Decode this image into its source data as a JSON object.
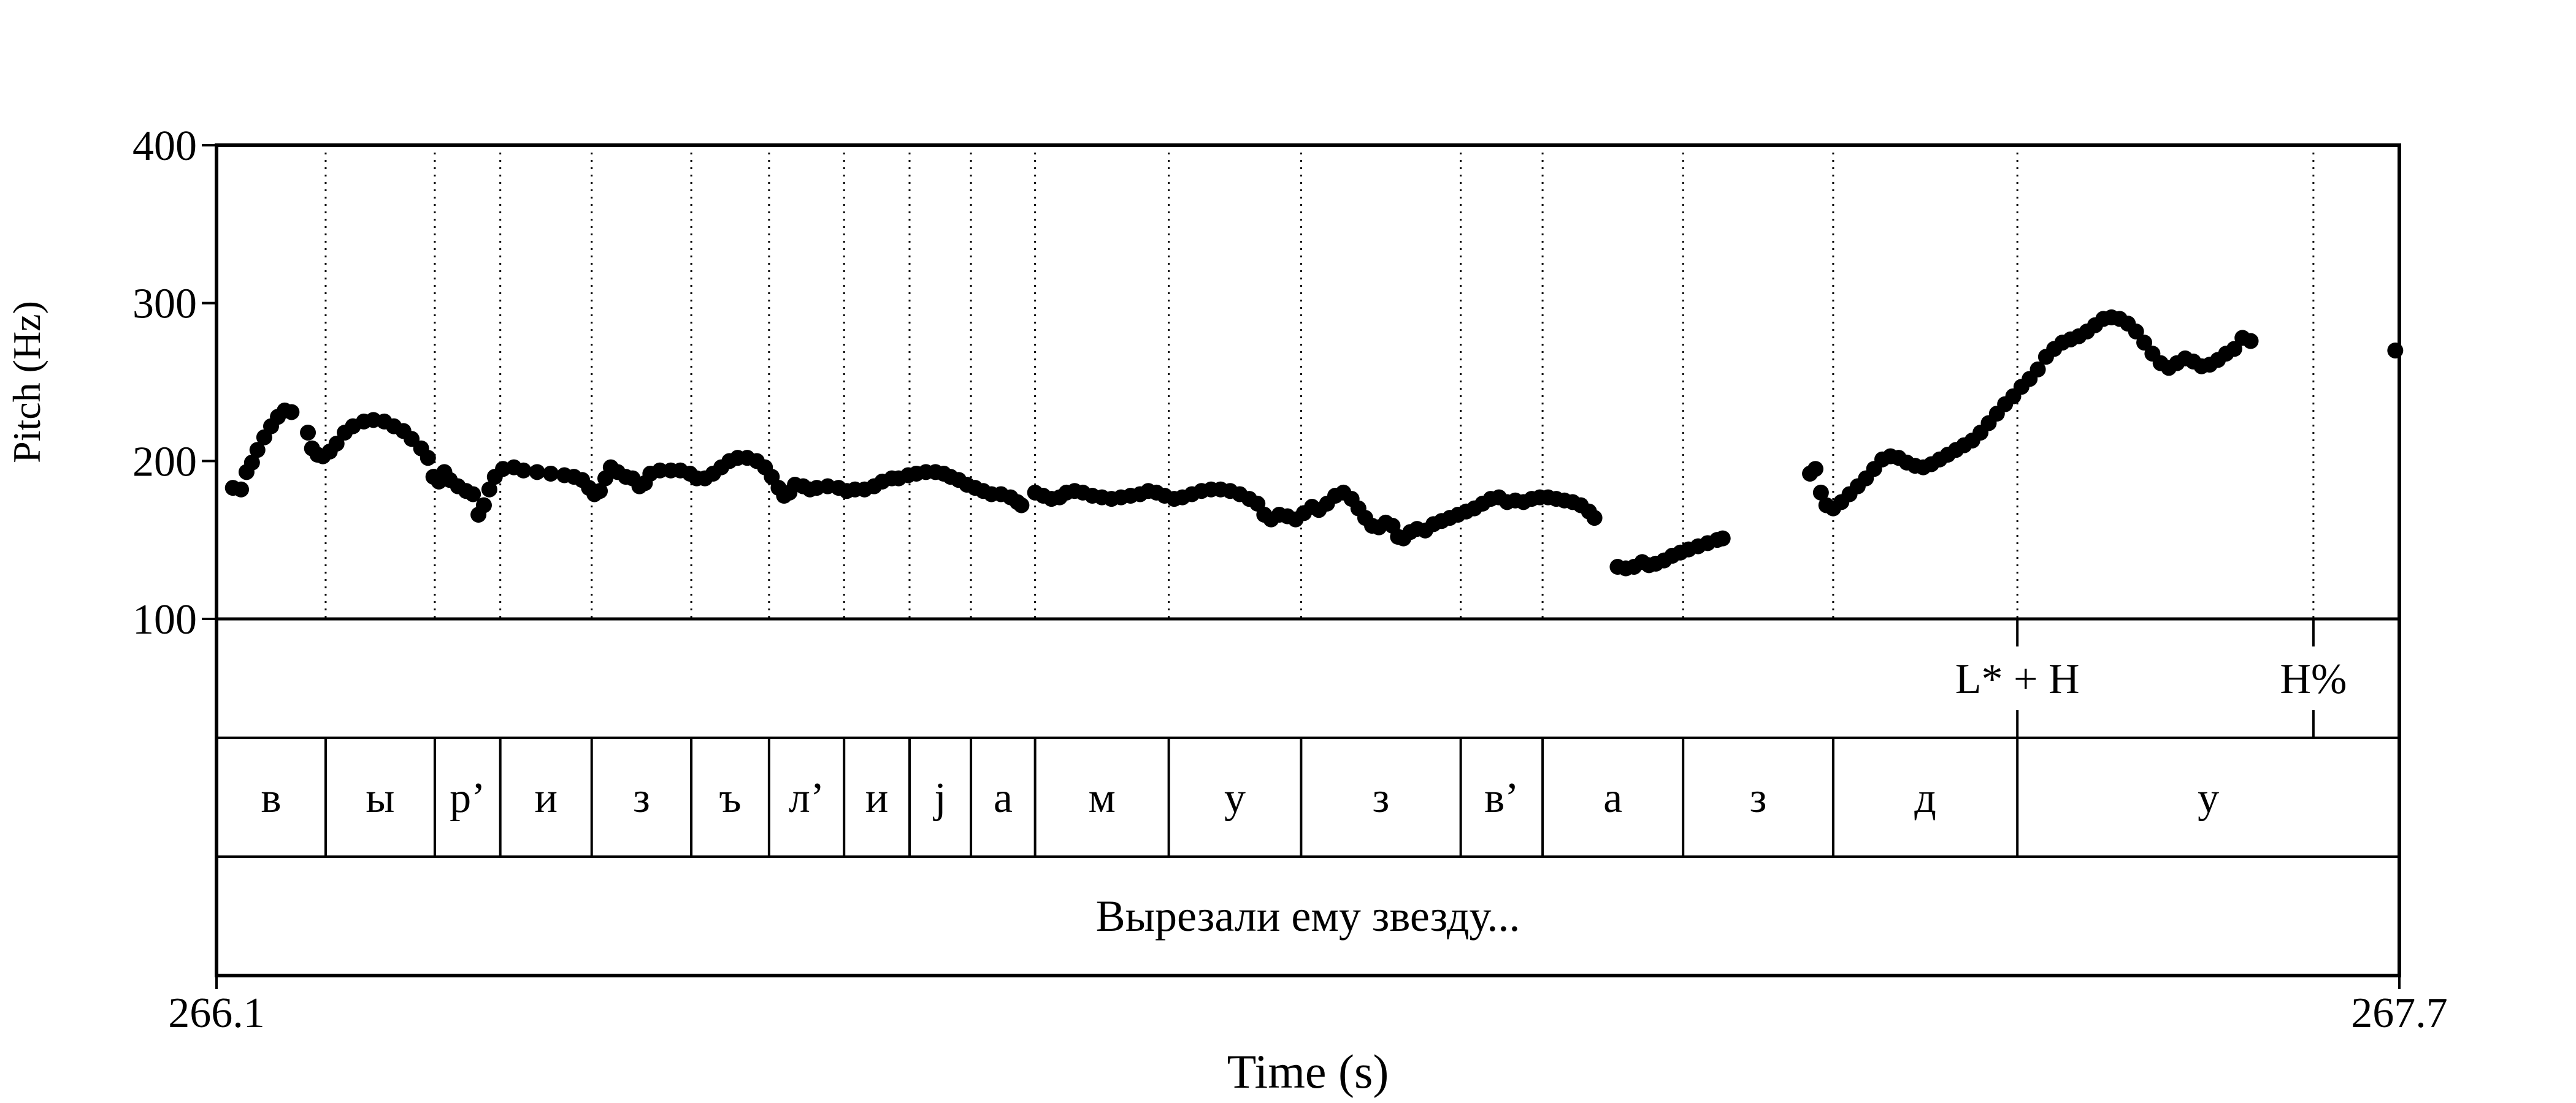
{
  "chart_data": {
    "type": "scatter",
    "subtype": "praat-pitch-track",
    "ylabel": "Pitch (Hz)",
    "xlabel": "Time (s)",
    "ylim": [
      100,
      400
    ],
    "xlim": [
      266.1,
      267.7
    ],
    "yticks": [
      "400",
      "300",
      "200",
      "100"
    ],
    "xticks": [
      "266.1",
      "267.7"
    ],
    "series": [
      {
        "points": [
          [
            266.112,
            183
          ],
          [
            266.118,
            182
          ],
          [
            266.122,
            193
          ],
          [
            266.126,
            199
          ],
          [
            266.13,
            207
          ],
          [
            266.135,
            215
          ],
          [
            266.14,
            222
          ],
          [
            266.145,
            228
          ],
          [
            266.15,
            232
          ],
          [
            266.155,
            231
          ],
          [
            266.167,
            218
          ],
          [
            266.17,
            208
          ],
          [
            266.174,
            204
          ],
          [
            266.178,
            203
          ],
          [
            266.183,
            206
          ],
          [
            266.188,
            211
          ],
          [
            266.194,
            218
          ],
          [
            266.2,
            222
          ],
          [
            266.208,
            225
          ],
          [
            266.215,
            226
          ],
          [
            266.223,
            225
          ],
          [
            266.23,
            222
          ],
          [
            266.237,
            219
          ],
          [
            266.243,
            214
          ],
          [
            266.25,
            208
          ],
          [
            266.255,
            202
          ],
          [
            266.259,
            190
          ],
          [
            266.263,
            187
          ],
          [
            266.267,
            193
          ],
          [
            266.271,
            188
          ],
          [
            266.277,
            184
          ],
          [
            266.283,
            181
          ],
          [
            266.288,
            179
          ],
          [
            266.292,
            166
          ],
          [
            266.296,
            172
          ],
          [
            266.3,
            182
          ],
          [
            266.304,
            190
          ],
          [
            266.31,
            195
          ],
          [
            266.318,
            196
          ],
          [
            266.325,
            194
          ],
          [
            266.335,
            193
          ],
          [
            266.345,
            192
          ],
          [
            266.355,
            191
          ],
          [
            266.362,
            190
          ],
          [
            266.368,
            188
          ],
          [
            266.373,
            183
          ],
          [
            266.377,
            179
          ],
          [
            266.381,
            181
          ],
          [
            266.385,
            189
          ],
          [
            266.389,
            196
          ],
          [
            266.394,
            193
          ],
          [
            266.4,
            190
          ],
          [
            266.405,
            189
          ],
          [
            266.41,
            184
          ],
          [
            266.414,
            186
          ],
          [
            266.418,
            192
          ],
          [
            266.425,
            194
          ],
          [
            266.433,
            194
          ],
          [
            266.44,
            194
          ],
          [
            266.447,
            192
          ],
          [
            266.452,
            189
          ],
          [
            266.458,
            189
          ],
          [
            266.464,
            192
          ],
          [
            266.47,
            196
          ],
          [
            266.476,
            200
          ],
          [
            266.482,
            202
          ],
          [
            266.489,
            202
          ],
          [
            266.496,
            200
          ],
          [
            266.502,
            196
          ],
          [
            266.507,
            190
          ],
          [
            266.512,
            183
          ],
          [
            266.516,
            178
          ],
          [
            266.52,
            180
          ],
          [
            266.524,
            185
          ],
          [
            266.53,
            184
          ],
          [
            266.535,
            182
          ],
          [
            266.54,
            183
          ],
          [
            266.548,
            184
          ],
          [
            266.556,
            183
          ],
          [
            266.562,
            181
          ],
          [
            266.568,
            182
          ],
          [
            266.575,
            182
          ],
          [
            266.582,
            184
          ],
          [
            266.588,
            187
          ],
          [
            266.595,
            189
          ],
          [
            266.6,
            189
          ],
          [
            266.607,
            191
          ],
          [
            266.613,
            192
          ],
          [
            266.62,
            193
          ],
          [
            266.627,
            193
          ],
          [
            266.633,
            192
          ],
          [
            266.638,
            190
          ],
          [
            266.644,
            188
          ],
          [
            266.65,
            185
          ],
          [
            266.656,
            183
          ],
          [
            266.662,
            181
          ],
          [
            266.668,
            179
          ],
          [
            266.675,
            179
          ],
          [
            266.682,
            177
          ],
          [
            266.687,
            174
          ],
          [
            266.69,
            172
          ],
          [
            266.7,
            180
          ],
          [
            266.706,
            178
          ],
          [
            266.712,
            176
          ],
          [
            266.718,
            177
          ],
          [
            266.723,
            180
          ],
          [
            266.729,
            181
          ],
          [
            266.735,
            180
          ],
          [
            266.742,
            178
          ],
          [
            266.749,
            177
          ],
          [
            266.756,
            176
          ],
          [
            266.763,
            177
          ],
          [
            266.77,
            178
          ],
          [
            266.777,
            179
          ],
          [
            266.783,
            181
          ],
          [
            266.789,
            180
          ],
          [
            266.795,
            178
          ],
          [
            266.802,
            176
          ],
          [
            266.808,
            177
          ],
          [
            266.815,
            179
          ],
          [
            266.822,
            181
          ],
          [
            266.829,
            182
          ],
          [
            266.836,
            182
          ],
          [
            266.843,
            181
          ],
          [
            266.85,
            179
          ],
          [
            266.857,
            176
          ],
          [
            266.863,
            173
          ],
          [
            266.868,
            166
          ],
          [
            266.873,
            163
          ],
          [
            266.879,
            166
          ],
          [
            266.885,
            165
          ],
          [
            266.891,
            163
          ],
          [
            266.897,
            167
          ],
          [
            266.903,
            171
          ],
          [
            266.908,
            169
          ],
          [
            266.914,
            173
          ],
          [
            266.92,
            178
          ],
          [
            266.926,
            180
          ],
          [
            266.932,
            176
          ],
          [
            266.937,
            170
          ],
          [
            266.942,
            164
          ],
          [
            266.947,
            159
          ],
          [
            266.952,
            158
          ],
          [
            266.957,
            161
          ],
          [
            266.962,
            159
          ],
          [
            266.966,
            152
          ],
          [
            266.97,
            151
          ],
          [
            266.975,
            155
          ],
          [
            266.98,
            157
          ],
          [
            266.986,
            156
          ],
          [
            266.992,
            160
          ],
          [
            266.998,
            162
          ],
          [
            267.004,
            164
          ],
          [
            267.01,
            166
          ],
          [
            267.016,
            168
          ],
          [
            267.022,
            170
          ],
          [
            267.028,
            173
          ],
          [
            267.034,
            176
          ],
          [
            267.04,
            177
          ],
          [
            267.046,
            174
          ],
          [
            267.052,
            175
          ],
          [
            267.058,
            174
          ],
          [
            267.064,
            176
          ],
          [
            267.07,
            177
          ],
          [
            267.076,
            177
          ],
          [
            267.082,
            176
          ],
          [
            267.088,
            175
          ],
          [
            267.094,
            174
          ],
          [
            267.1,
            172
          ],
          [
            267.106,
            168
          ],
          [
            267.11,
            164
          ],
          [
            267.127,
            133
          ],
          [
            267.133,
            132
          ],
          [
            267.139,
            133
          ],
          [
            267.145,
            136
          ],
          [
            267.15,
            134
          ],
          [
            267.155,
            135
          ],
          [
            267.161,
            137
          ],
          [
            267.167,
            140
          ],
          [
            267.173,
            142
          ],
          [
            267.179,
            144
          ],
          [
            267.186,
            146
          ],
          [
            267.193,
            148
          ],
          [
            267.2,
            150
          ],
          [
            267.204,
            151
          ],
          [
            267.268,
            192
          ],
          [
            267.272,
            195
          ],
          [
            267.276,
            180
          ],
          [
            267.28,
            172
          ],
          [
            267.285,
            170
          ],
          [
            267.291,
            174
          ],
          [
            267.297,
            179
          ],
          [
            267.303,
            184
          ],
          [
            267.309,
            189
          ],
          [
            267.315,
            195
          ],
          [
            267.321,
            201
          ],
          [
            267.327,
            203
          ],
          [
            267.333,
            202
          ],
          [
            267.339,
            199
          ],
          [
            267.345,
            197
          ],
          [
            267.351,
            196
          ],
          [
            267.357,
            198
          ],
          [
            267.363,
            201
          ],
          [
            267.369,
            204
          ],
          [
            267.375,
            207
          ],
          [
            267.381,
            210
          ],
          [
            267.387,
            213
          ],
          [
            267.393,
            218
          ],
          [
            267.399,
            224
          ],
          [
            267.405,
            230
          ],
          [
            267.411,
            236
          ],
          [
            267.417,
            241
          ],
          [
            267.423,
            247
          ],
          [
            267.429,
            252
          ],
          [
            267.435,
            258
          ],
          [
            267.441,
            266
          ],
          [
            267.447,
            271
          ],
          [
            267.453,
            275
          ],
          [
            267.459,
            277
          ],
          [
            267.465,
            279
          ],
          [
            267.471,
            282
          ],
          [
            267.477,
            286
          ],
          [
            267.483,
            290
          ],
          [
            267.489,
            291
          ],
          [
            267.495,
            290
          ],
          [
            267.501,
            287
          ],
          [
            267.507,
            282
          ],
          [
            267.513,
            275
          ],
          [
            267.519,
            268
          ],
          [
            267.525,
            262
          ],
          [
            267.531,
            259
          ],
          [
            267.537,
            262
          ],
          [
            267.543,
            265
          ],
          [
            267.549,
            263
          ],
          [
            267.555,
            260
          ],
          [
            267.561,
            261
          ],
          [
            267.567,
            264
          ],
          [
            267.573,
            268
          ],
          [
            267.579,
            271
          ],
          [
            267.585,
            278
          ],
          [
            267.591,
            276
          ],
          [
            267.697,
            270
          ]
        ]
      }
    ]
  },
  "tiers": {
    "tones": {
      "boundaries": [
        267.42,
        267.637
      ],
      "labels": [
        {
          "t": 267.42,
          "text": "L* + H"
        },
        {
          "t": 267.637,
          "text": "H%"
        }
      ]
    },
    "segments": {
      "boundaries": [
        266.18,
        266.26,
        266.308,
        266.375,
        266.448,
        266.505,
        266.56,
        266.608,
        266.653,
        266.7,
        266.798,
        266.895,
        267.012,
        267.072,
        267.175,
        267.285,
        267.42
      ],
      "labels": [
        "в",
        "ы",
        "р’",
        "и",
        "з",
        "ъ",
        "л’",
        "и",
        "j",
        "а",
        "м",
        "у",
        "з",
        "в’",
        "а",
        "з",
        "д",
        "у"
      ]
    },
    "sentence": {
      "text": "Вырезали ему звезду..."
    }
  }
}
